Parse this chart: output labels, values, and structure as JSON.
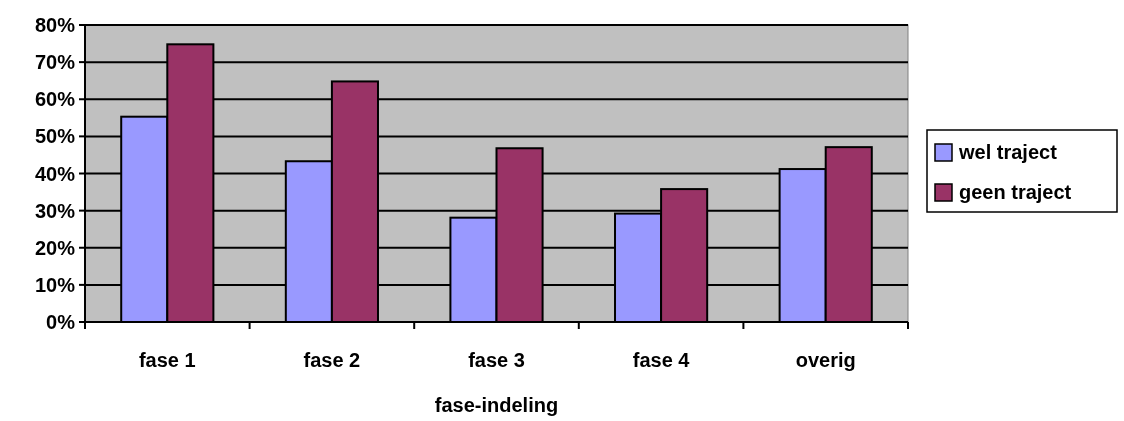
{
  "chart_data": {
    "type": "bar",
    "xlabel": "fase-indeling",
    "categories": [
      "fase 1",
      "fase 2",
      "fase 3",
      "fase 4",
      "overig"
    ],
    "series": [
      {
        "name": "wel traject",
        "color": "#9999ff",
        "values": [
          55.3,
          43.3,
          28.1,
          29.2,
          41.2
        ]
      },
      {
        "name": "geen traject",
        "color": "#993366",
        "values": [
          74.8,
          64.8,
          46.8,
          35.8,
          47.1
        ]
      }
    ],
    "ylim": [
      0,
      80
    ],
    "yticks": [
      {
        "value": 0,
        "label": "0%"
      },
      {
        "value": 10,
        "label": "10%"
      },
      {
        "value": 20,
        "label": "20%"
      },
      {
        "value": 30,
        "label": "30%"
      },
      {
        "value": 40,
        "label": "40%"
      },
      {
        "value": 50,
        "label": "50%"
      },
      {
        "value": 60,
        "label": "60%"
      },
      {
        "value": 70,
        "label": "70%"
      },
      {
        "value": 80,
        "label": "80%"
      }
    ],
    "grid": "y",
    "legend": "right"
  }
}
